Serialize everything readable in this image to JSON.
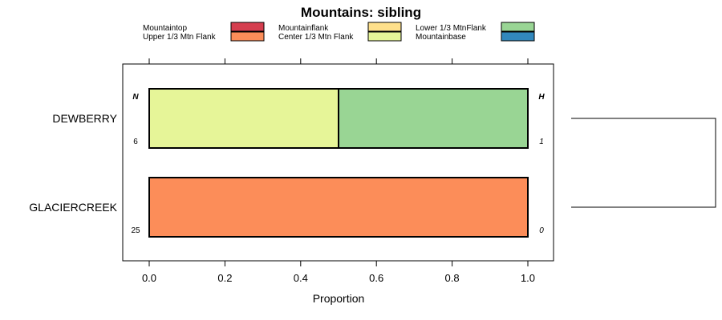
{
  "chart_data": {
    "type": "bar",
    "stacked": true,
    "orientation": "horizontal",
    "title": "Mountains: sibling",
    "xlabel": "Proportion",
    "ylabel": "",
    "xlim": [
      0,
      1
    ],
    "x_ticks": [
      "0.0",
      "0.2",
      "0.4",
      "0.6",
      "0.8",
      "1.0"
    ],
    "grid": false,
    "legend_position": "top",
    "n_header": "N",
    "h_header": "H",
    "categories": [
      "DEWBERRY",
      "GLACIERCREEK"
    ],
    "n_values": [
      "6",
      "25"
    ],
    "h_values": [
      "1",
      "0"
    ],
    "series": [
      {
        "name": "Mountaintop",
        "color": "#d53e4f",
        "values": [
          0,
          0
        ]
      },
      {
        "name": "Upper 1/3 Mtn Flank",
        "color": "#fc8d59",
        "values": [
          0,
          1.0
        ]
      },
      {
        "name": "Mountainflank",
        "color": "#fee08b",
        "values": [
          0,
          0
        ]
      },
      {
        "name": "Center 1/3 Mtn Flank",
        "color": "#e6f598",
        "values": [
          0.5,
          0
        ]
      },
      {
        "name": "Lower 1/3 MtnFlank",
        "color": "#99d594",
        "values": [
          0.5,
          0
        ]
      },
      {
        "name": "Mountainbase",
        "color": "#3288bd",
        "values": [
          0,
          0
        ]
      }
    ],
    "dendrogram": true
  }
}
